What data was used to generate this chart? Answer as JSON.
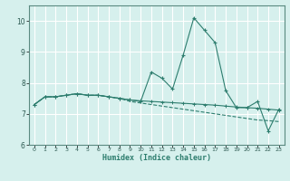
{
  "x": [
    0,
    1,
    2,
    3,
    4,
    5,
    6,
    7,
    8,
    9,
    10,
    11,
    12,
    13,
    14,
    15,
    16,
    17,
    18,
    19,
    20,
    21,
    22,
    23
  ],
  "line1": [
    7.3,
    7.55,
    7.55,
    7.6,
    7.65,
    7.6,
    7.6,
    7.55,
    7.5,
    7.45,
    7.4,
    8.35,
    8.15,
    7.8,
    8.9,
    10.1,
    9.7,
    9.3,
    7.75,
    7.2,
    7.2,
    7.4,
    6.45,
    7.15
  ],
  "line2": [
    7.3,
    7.55,
    7.55,
    7.6,
    7.65,
    7.6,
    7.6,
    7.55,
    7.5,
    7.4,
    7.35,
    7.3,
    7.25,
    7.2,
    7.15,
    7.1,
    7.05,
    7.0,
    6.95,
    6.9,
    6.85,
    6.8,
    6.78,
    6.75
  ],
  "line3": [
    7.3,
    7.55,
    7.55,
    7.6,
    7.65,
    7.6,
    7.6,
    7.55,
    7.5,
    7.45,
    7.42,
    7.4,
    7.38,
    7.36,
    7.34,
    7.32,
    7.3,
    7.28,
    7.25,
    7.22,
    7.2,
    7.18,
    7.15,
    7.12
  ],
  "color": "#2d7d6e",
  "bg_color": "#d6f0ed",
  "grid_color": "#ffffff",
  "xlabel": "Humidex (Indice chaleur)",
  "ylim": [
    6,
    10.5
  ],
  "yticks": [
    6,
    7,
    8,
    9,
    10
  ],
  "xlim": [
    -0.5,
    23.5
  ],
  "xticks": [
    0,
    1,
    2,
    3,
    4,
    5,
    6,
    7,
    8,
    9,
    10,
    11,
    12,
    13,
    14,
    15,
    16,
    17,
    18,
    19,
    20,
    21,
    22,
    23
  ]
}
